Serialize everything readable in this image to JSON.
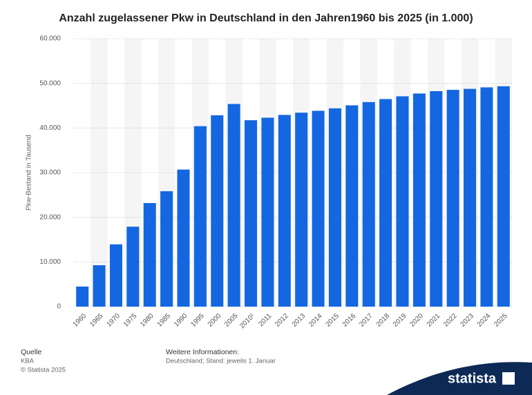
{
  "chart_data": {
    "type": "bar",
    "title": "Anzahl zugelassener Pkw in Deutschland in den Jahren1960 bis 2025 (in 1.000)",
    "y_label": "Pkw-Bestand in Tausend",
    "categories": [
      "1960",
      "1965",
      "1970",
      "1975",
      "1980",
      "1985",
      "1990",
      "1995",
      "2000",
      "2005",
      "2010¹",
      "2011",
      "2012",
      "2013",
      "2014",
      "2015",
      "2016",
      "2017",
      "2018",
      "2019",
      "2020",
      "2021",
      "2022",
      "2023",
      "2024",
      "2025"
    ],
    "values": [
      4489,
      9267,
      13941,
      17898,
      23192,
      25845,
      30685,
      40404,
      42840,
      45376,
      41738,
      42302,
      42928,
      43431,
      43851,
      44403,
      45071,
      45804,
      46475,
      47096,
      47716,
      48248,
      48541,
      48763,
      49099,
      49339
    ],
    "color": "#1467e0",
    "ylim": [
      0,
      60000
    ],
    "yticks": [
      0,
      {
        "value": 10000,
        "label": "10.000"
      },
      {
        "value": 20000,
        "label": "20.000"
      },
      {
        "value": 30000,
        "label": "30.000"
      },
      {
        "value": 40000,
        "label": "40.000"
      },
      {
        "value": 50000,
        "label": "50.000"
      },
      {
        "value": 60000,
        "label": "60.000"
      }
    ],
    "grid": true
  },
  "footer": {
    "source_heading": "Quelle",
    "source": "KBA",
    "copyright": "© Statista 2025",
    "info_heading": "Weitere Informationen:",
    "info": "Deutschland; Stand: jeweils 1. Januar",
    "logo": "statista"
  }
}
